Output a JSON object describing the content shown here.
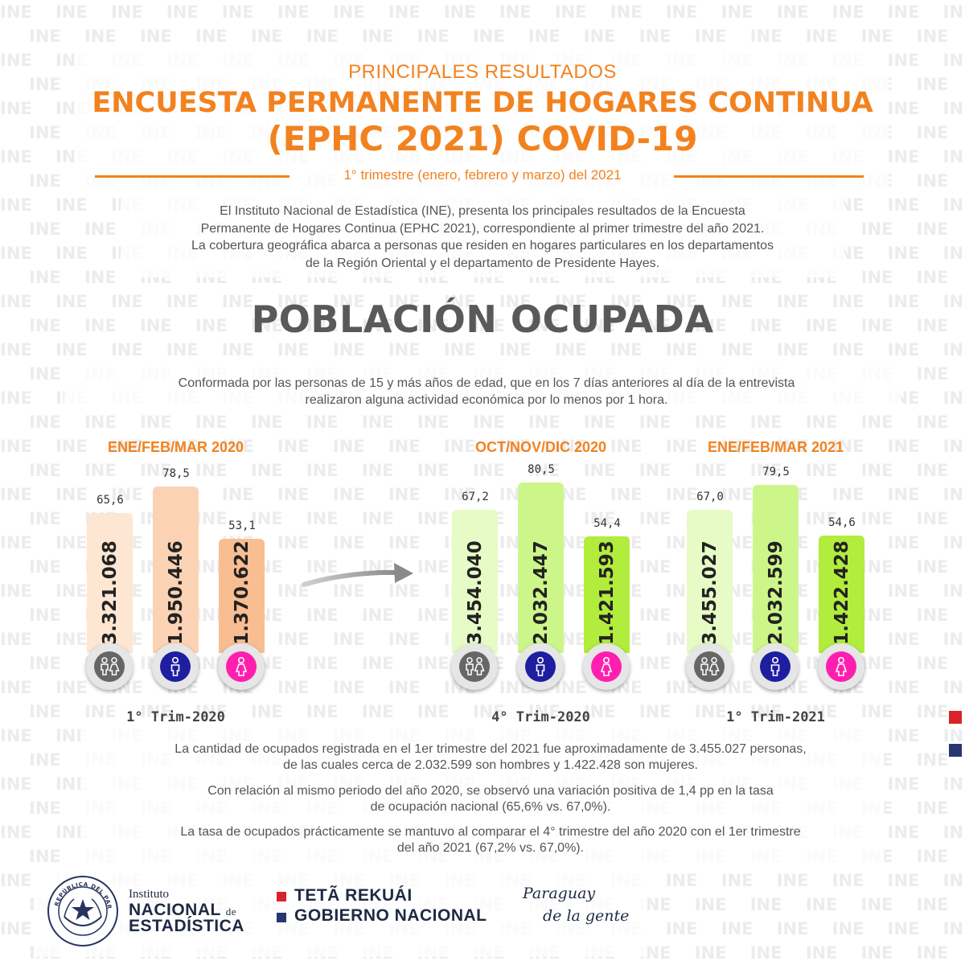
{
  "watermark": {
    "text": "INE"
  },
  "header": {
    "subtitle": "PRINCIPALES RESULTADOS",
    "title_line1": "ENCUESTA PERMANENTE DE HOGARES CONTINUA",
    "title_line2": "(EPHC 2021) COVID-19",
    "period": "1° trimestre (enero, febrero y marzo) del 2021"
  },
  "intro": {
    "line1": "El Instituto Nacional de Estadística (INE), presenta los principales resultados de la Encuesta",
    "line2": "Permanente de Hogares Continua (EPHC 2021), correspondiente al primer trimestre del año 2021.",
    "line3": "La cobertura geográfica abarca a personas que residen en hogares particulares en los departamentos",
    "line4": "de la Región Oriental y el departamento de Presidente Hayes."
  },
  "section": {
    "title": "POBLACIÓN OCUPADA",
    "definition_line1": "Conformada por las personas de 15 y más años de edad, que en los 7 días anteriores al día de la entrevista",
    "definition_line2": "realizaron alguna actividad económica por lo menos por 1 hora."
  },
  "colors": {
    "orange": "#f2821f",
    "peach_light": "#fde6d2",
    "peach_mid": "#fbd3b4",
    "peach_strong": "#f9bd92",
    "lime_light": "#e6fbc6",
    "lime_mid": "#cdf68a",
    "lime_strong": "#b2ec3c",
    "total_icon": "#666666",
    "male_icon": "#1e1ea0",
    "female_icon": "#ff1fae",
    "red_square": "#d8232a",
    "blue_square": "#26366e"
  },
  "chart_data": {
    "type": "bar",
    "groups": [
      {
        "period": "ENE/FEB/MAR 2020",
        "trimester": "1° Trim-2020",
        "bars": [
          {
            "category": "total",
            "icon": "couple-icon",
            "rate_label": "65,6",
            "rate": 65.6,
            "count_label": "3.321.068",
            "count": 3321068
          },
          {
            "category": "hombres",
            "icon": "male-icon",
            "rate_label": "78,5",
            "rate": 78.5,
            "count_label": "1.950.446",
            "count": 1950446
          },
          {
            "category": "mujeres",
            "icon": "female-icon",
            "rate_label": "53,1",
            "rate": 53.1,
            "count_label": "1.370.622",
            "count": 1370622
          }
        ]
      },
      {
        "period": "OCT/NOV/DIC 2020",
        "trimester": "4° Trim-2020",
        "bars": [
          {
            "category": "total",
            "icon": "couple-icon",
            "rate_label": "67,2",
            "rate": 67.2,
            "count_label": "3.454.040",
            "count": 3454040
          },
          {
            "category": "hombres",
            "icon": "male-icon",
            "rate_label": "80,5",
            "rate": 80.5,
            "count_label": "2.032.447",
            "count": 2032447
          },
          {
            "category": "mujeres",
            "icon": "female-icon",
            "rate_label": "54,4",
            "rate": 54.4,
            "count_label": "1.421.593",
            "count": 1421593
          }
        ]
      },
      {
        "period": "ENE/FEB/MAR 2021",
        "trimester": "1° Trim-2021",
        "bars": [
          {
            "category": "total",
            "icon": "couple-icon",
            "rate_label": "67,0",
            "rate": 67.0,
            "count_label": "3.455.027",
            "count": 3455027
          },
          {
            "category": "hombres",
            "icon": "male-icon",
            "rate_label": "79,5",
            "rate": 79.5,
            "count_label": "2.032.599",
            "count": 2032599
          },
          {
            "category": "mujeres",
            "icon": "female-icon",
            "rate_label": "54,6",
            "rate": 54.6,
            "count_label": "1.422.428",
            "count": 1422428
          }
        ]
      }
    ]
  },
  "findings": {
    "p1_line1": "La cantidad de ocupados registrada en el 1er trimestre del 2021 fue aproximadamente de 3.455.027 personas,",
    "p1_line2": "de las cuales cerca de 2.032.599 son hombres y 1.422.428 son mujeres.",
    "p2_line1": "Con relación al mismo periodo del año 2020, se observó una variación positiva de 1,4 pp en la tasa",
    "p2_line2": "de ocupación nacional (65,6% vs. 67,0%).",
    "p3_line1": "La tasa de ocupados prácticamente se mantuvo al comparar el 4° trimestre del año 2020 con el 1er trimestre",
    "p3_line2": "del año 2021 (67,2% vs. 67,0%)."
  },
  "footer": {
    "seal_text": "REPÚBLICA DEL PARAGUAY",
    "ine_line1": "Instituto",
    "ine_line2": "NACIONAL",
    "ine_de": "de",
    "ine_line3": "ESTADÍSTICA",
    "gov_line1": "TETÃ REKUÁI",
    "gov_line2": "GOBIERNO NACIONAL",
    "slogan_line1": "Paraguay",
    "slogan_line2": "de la gente"
  }
}
